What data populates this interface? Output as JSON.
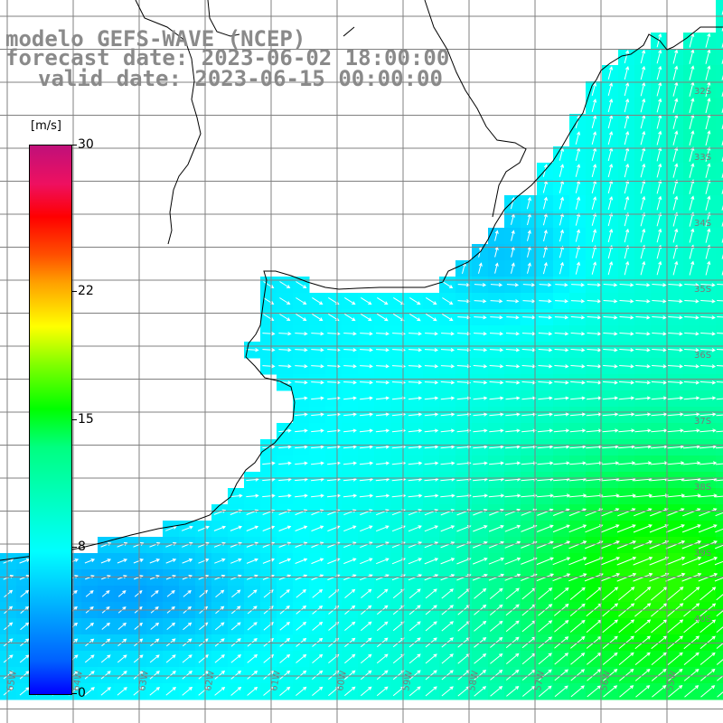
{
  "title": {
    "model": "modelo GEFS-WAVE (NCEP)",
    "forecast": "forecast date: 2023-06-02 18:00:00",
    "valid": "valid date: 2023-06-15 00:00:00"
  },
  "legend": {
    "unit": "[m/s]",
    "ticks": [
      {
        "label": "30",
        "value": 30
      },
      {
        "label": "22",
        "value": 22
      },
      {
        "label": "15",
        "value": 15
      },
      {
        "label": "8",
        "value": 8
      },
      {
        "label": "0",
        "value": 0
      }
    ]
  },
  "colors": {
    "land": "#ffffff",
    "grid": "#808080",
    "coast": "#000000",
    "arrow": "#ffffff",
    "title": "#8a8a8a"
  },
  "lat_labels": [
    "32S",
    "33S",
    "34S",
    "35S",
    "36S",
    "37S",
    "38S",
    "39S",
    "40S"
  ],
  "lon_labels": [
    "65W",
    "64W",
    "63W",
    "62W",
    "61W",
    "60W",
    "59W",
    "58W",
    "57W",
    "56W",
    "55W"
  ]
}
